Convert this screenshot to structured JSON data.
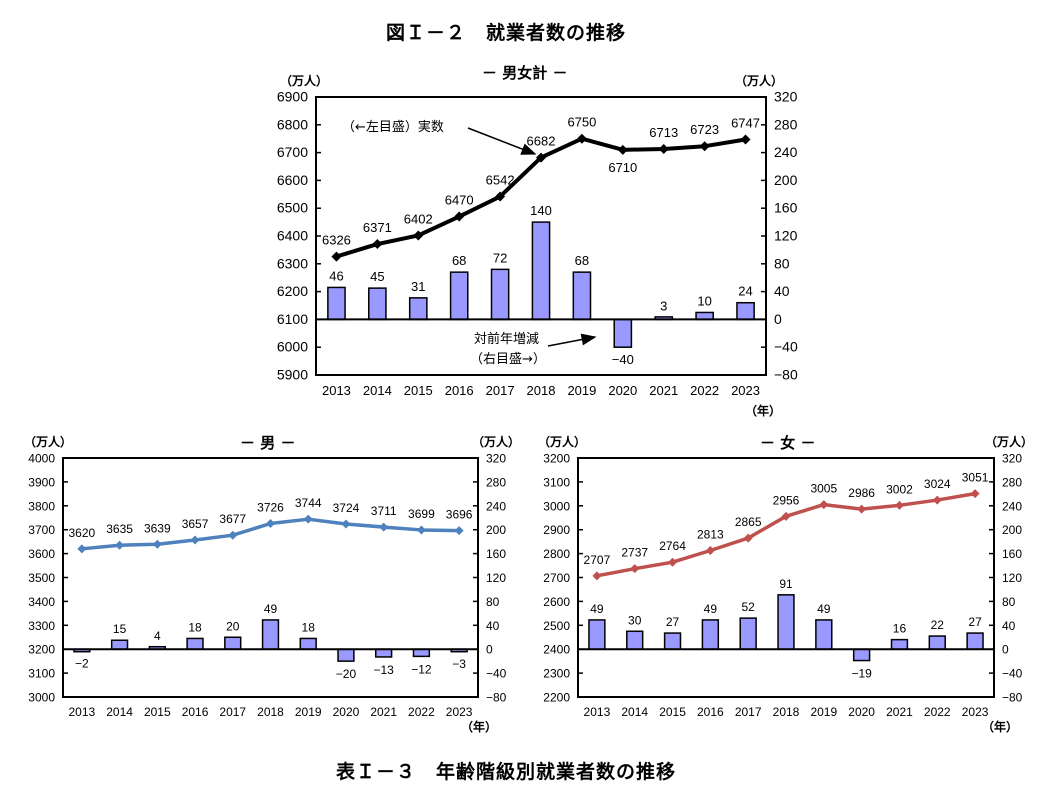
{
  "figure_title": "図Ｉ－２　就業者数の推移",
  "table_title": "表Ｉ－３　年齢階級別就業者数の推移",
  "colors": {
    "bar_fill": "#9999ff",
    "bar_stroke": "#000000",
    "total_line": "#000000",
    "male_line": "#4f81bd",
    "female_line": "#c0504d"
  },
  "chart_data": [
    {
      "id": "total",
      "type": "bar+line",
      "title": "－ 男女計 －",
      "left_unit": "（万人）",
      "right_unit": "（万人）",
      "x_unit": "（年）",
      "categories": [
        "2013",
        "2014",
        "2015",
        "2016",
        "2017",
        "2018",
        "2019",
        "2020",
        "2021",
        "2022",
        "2023"
      ],
      "line_series": {
        "name": "実数",
        "axis": "left",
        "values": [
          6326,
          6371,
          6402,
          6470,
          6542,
          6682,
          6750,
          6710,
          6713,
          6723,
          6747
        ]
      },
      "bar_series": {
        "name": "対前年増減",
        "axis": "right",
        "values": [
          46,
          45,
          31,
          68,
          72,
          140,
          68,
          -40,
          3,
          10,
          24
        ]
      },
      "left_ylim": [
        5900,
        6900
      ],
      "left_ticks": [
        5900,
        6000,
        6100,
        6200,
        6300,
        6400,
        6500,
        6600,
        6700,
        6800,
        6900
      ],
      "right_ylim": [
        -80,
        320
      ],
      "right_ticks": [
        -80,
        -40,
        0,
        40,
        80,
        120,
        160,
        200,
        240,
        280,
        320
      ],
      "annotations": {
        "line_label": "（←左目盛）実数",
        "bar_label_1": "対前年増減",
        "bar_label_2": "（右目盛→）"
      }
    },
    {
      "id": "male",
      "type": "bar+line",
      "title": "－ 男 －",
      "left_unit": "（万人）",
      "right_unit": "（万人）",
      "x_unit": "（年）",
      "categories": [
        "2013",
        "2014",
        "2015",
        "2016",
        "2017",
        "2018",
        "2019",
        "2020",
        "2021",
        "2022",
        "2023"
      ],
      "line_series": {
        "name": "実数",
        "axis": "left",
        "values": [
          3620,
          3635,
          3639,
          3657,
          3677,
          3726,
          3744,
          3724,
          3711,
          3699,
          3696
        ]
      },
      "bar_series": {
        "name": "対前年増減",
        "axis": "right",
        "values": [
          -2,
          15,
          4,
          18,
          20,
          49,
          18,
          -20,
          -13,
          -12,
          -3
        ]
      },
      "left_ylim": [
        3000,
        4000
      ],
      "left_ticks": [
        3000,
        3100,
        3200,
        3300,
        3400,
        3500,
        3600,
        3700,
        3800,
        3900,
        4000
      ],
      "right_ylim": [
        -80,
        320
      ],
      "right_ticks": [
        -80,
        -40,
        0,
        40,
        80,
        120,
        160,
        200,
        240,
        280,
        320
      ]
    },
    {
      "id": "female",
      "type": "bar+line",
      "title": "－ 女 －",
      "left_unit": "（万人）",
      "right_unit": "（万人）",
      "x_unit": "（年）",
      "categories": [
        "2013",
        "2014",
        "2015",
        "2016",
        "2017",
        "2018",
        "2019",
        "2020",
        "2021",
        "2022",
        "2023"
      ],
      "line_series": {
        "name": "実数",
        "axis": "left",
        "values": [
          2707,
          2737,
          2764,
          2813,
          2865,
          2956,
          3005,
          2986,
          3002,
          3024,
          3051
        ]
      },
      "bar_series": {
        "name": "対前年増減",
        "axis": "right",
        "values": [
          49,
          30,
          27,
          49,
          52,
          91,
          49,
          -19,
          16,
          22,
          27
        ]
      },
      "left_ylim": [
        2200,
        3200
      ],
      "left_ticks": [
        2200,
        2300,
        2400,
        2500,
        2600,
        2700,
        2800,
        2900,
        3000,
        3100,
        3200
      ],
      "right_ylim": [
        -80,
        320
      ],
      "right_ticks": [
        -80,
        -40,
        0,
        40,
        80,
        120,
        160,
        200,
        240,
        280,
        320
      ]
    }
  ]
}
